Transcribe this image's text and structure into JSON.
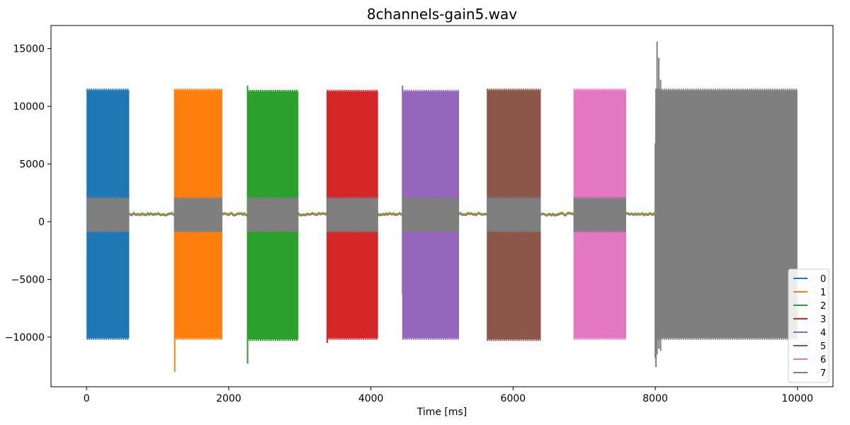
{
  "chart_data": {
    "type": "line",
    "title": "8channels-gain5.wav",
    "xlabel": "Time [ms]",
    "ylabel": "",
    "xlim": [
      -500,
      10500
    ],
    "ylim": [
      -14300,
      17000
    ],
    "xticks": [
      0,
      2000,
      4000,
      6000,
      8000,
      10000
    ],
    "yticks": [
      -10000,
      -5000,
      0,
      5000,
      10000,
      15000
    ],
    "xtick_labels": [
      "0",
      "2000",
      "4000",
      "6000",
      "8000",
      "10000"
    ],
    "ytick_labels": [
      "−10000",
      "−5000",
      "0",
      "5000",
      "10000",
      "15000"
    ],
    "grid": false,
    "legend_position": "lower-right",
    "baseline": {
      "x_range": [
        0,
        8000
      ],
      "low": 400,
      "high": 900
    },
    "series": [
      {
        "name": "0",
        "color": "#1f77b4",
        "bursts": [
          {
            "start": 0,
            "end": 600,
            "min": -10100,
            "max": 11400
          }
        ],
        "spikes": []
      },
      {
        "name": "1",
        "color": "#ff7f0e",
        "bursts": [
          {
            "start": 1230,
            "end": 1910,
            "min": -10100,
            "max": 11400
          }
        ],
        "spikes": [
          {
            "x": 1240,
            "min": -13000,
            "max": 11400
          }
        ]
      },
      {
        "name": "2",
        "color": "#2ca02c",
        "bursts": [
          {
            "start": 2260,
            "end": 2980,
            "min": -10200,
            "max": 11300
          }
        ],
        "spikes": [
          {
            "x": 2265,
            "min": -12300,
            "max": 11800
          }
        ]
      },
      {
        "name": "3",
        "color": "#d62728",
        "bursts": [
          {
            "start": 3380,
            "end": 4100,
            "min": -10100,
            "max": 11300
          }
        ],
        "spikes": [
          {
            "x": 3385,
            "min": -10500,
            "max": 11300
          }
        ]
      },
      {
        "name": "4",
        "color": "#9467bd",
        "bursts": [
          {
            "start": 4440,
            "end": 5240,
            "min": -10100,
            "max": 11300
          }
        ],
        "spikes": [
          {
            "x": 4445,
            "min": -6300,
            "max": 11800
          }
        ]
      },
      {
        "name": "5",
        "color": "#8c564b",
        "bursts": [
          {
            "start": 5630,
            "end": 6390,
            "min": -10200,
            "max": 11400
          }
        ],
        "spikes": []
      },
      {
        "name": "6",
        "color": "#e377c2",
        "bursts": [
          {
            "start": 6850,
            "end": 7590,
            "min": -10100,
            "max": 11400
          }
        ],
        "spikes": []
      },
      {
        "name": "7",
        "color": "#7f7f7f",
        "bursts": [
          {
            "start": 0,
            "end": 600,
            "min": -800,
            "max": 2000
          },
          {
            "start": 1230,
            "end": 1910,
            "min": -800,
            "max": 2000
          },
          {
            "start": 2260,
            "end": 2980,
            "min": -800,
            "max": 2000
          },
          {
            "start": 3380,
            "end": 4100,
            "min": -800,
            "max": 2000
          },
          {
            "start": 4440,
            "end": 5240,
            "min": -800,
            "max": 2000
          },
          {
            "start": 5630,
            "end": 6390,
            "min": -800,
            "max": 2000
          },
          {
            "start": 6850,
            "end": 7590,
            "min": -800,
            "max": 2000
          },
          {
            "start": 8000,
            "end": 10000,
            "min": -10100,
            "max": 11400
          }
        ],
        "spikes": [
          {
            "x": 8000,
            "min": -11800,
            "max": 6800
          },
          {
            "x": 8010,
            "min": -12600,
            "max": 9500
          },
          {
            "x": 8025,
            "min": -11500,
            "max": 15600
          },
          {
            "x": 8050,
            "min": -11000,
            "max": 14200
          },
          {
            "x": 8075,
            "min": -11200,
            "max": 12300
          }
        ]
      }
    ]
  }
}
